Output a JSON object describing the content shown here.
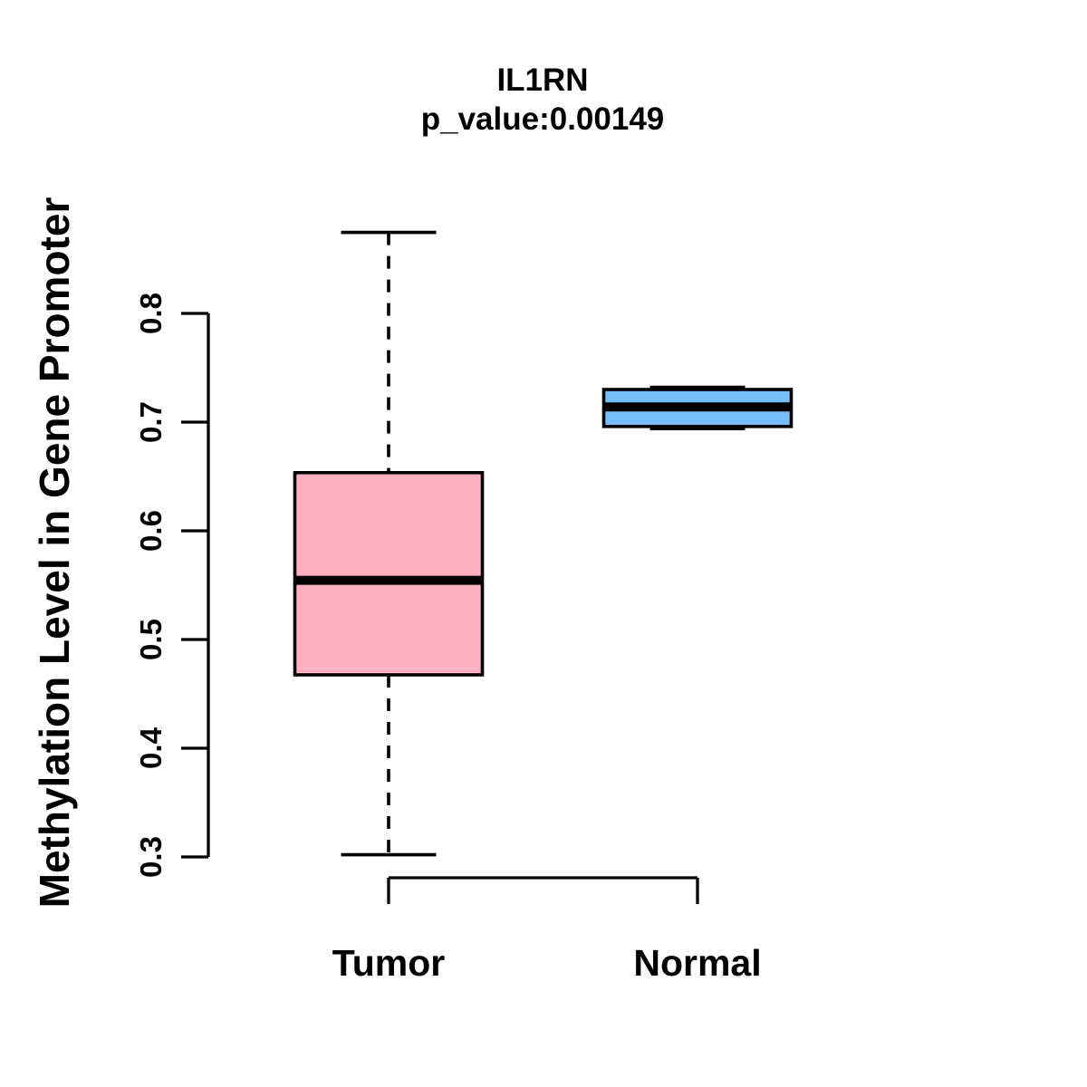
{
  "chart_data": {
    "type": "boxplot",
    "title": "IL1RN",
    "subtitle": "p_value:0.00149",
    "ylabel": "Methylation Level in Gene Promoter",
    "xlabel": "",
    "ylim": [
      0.3,
      0.8
    ],
    "y_tick_labels": [
      "0.3",
      "0.4",
      "0.5",
      "0.6",
      "0.7",
      "0.8"
    ],
    "categories": [
      "Tumor",
      "Normal"
    ],
    "grid": false,
    "legend": "none",
    "background": "#FFFFFF",
    "axis_color": "#000000",
    "border_color": "#000000",
    "series": [
      {
        "name": "Tumor",
        "box_color": "#FFB0C1",
        "whisker_low": 0.302,
        "q1": 0.4675,
        "median": 0.5545,
        "q3": 0.6535,
        "whisker_high": 0.8745
      },
      {
        "name": "Normal",
        "box_color": "#74BFF7",
        "whisker_low": 0.694,
        "q1": 0.696,
        "median": 0.714,
        "q3": 0.73,
        "whisker_high": 0.732
      }
    ]
  }
}
